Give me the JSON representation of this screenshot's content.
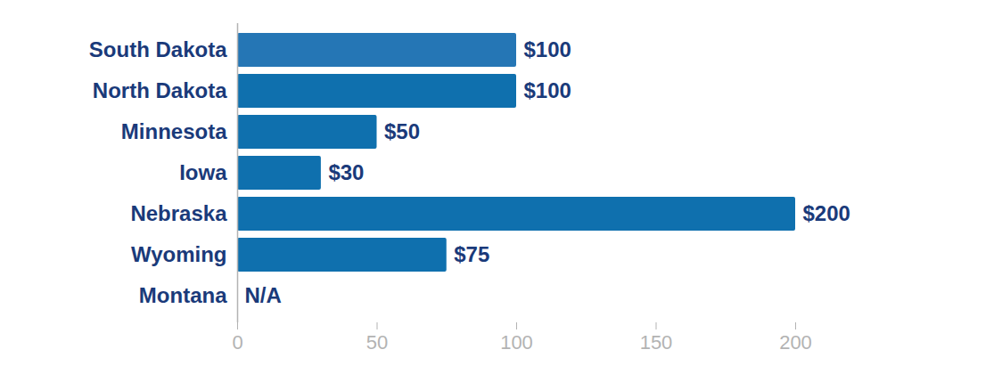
{
  "chart_data": {
    "type": "bar",
    "orientation": "horizontal",
    "categories": [
      "South Dakota",
      "North Dakota",
      "Minnesota",
      "Iowa",
      "Nebraska",
      "Wyoming",
      "Montana"
    ],
    "values": [
      100,
      100,
      50,
      30,
      200,
      75,
      null
    ],
    "value_labels": [
      "$100",
      "$100",
      "$50",
      "$30",
      "$200",
      "$75",
      "N/A"
    ],
    "colors": [
      "#2576b5",
      "#0f70ae",
      "#0f70ae",
      "#0f70ae",
      "#0f70ae",
      "#0f70ae",
      "#0f70ae"
    ],
    "xlim": [
      0,
      200
    ],
    "xticks": [
      0,
      50,
      100,
      150,
      200
    ],
    "data_labels": true,
    "grid": false
  }
}
